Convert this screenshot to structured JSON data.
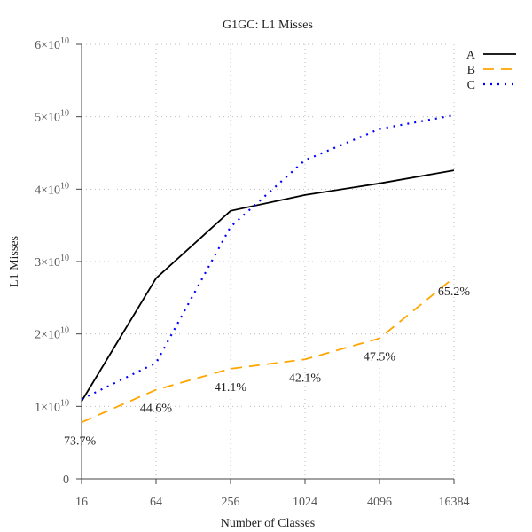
{
  "chart_data": {
    "type": "line",
    "title": "G1GC: L1 Misses",
    "xlabel": "Number of Classes",
    "ylabel": "L1 Misses",
    "x_scale": "log2",
    "x": [
      16,
      64,
      256,
      1024,
      4096,
      16384
    ],
    "x_ticks": [
      "16",
      "64",
      "256",
      "1024",
      "4096",
      "16384"
    ],
    "ylim": [
      0,
      60000000000
    ],
    "y_ticks": [
      {
        "value": 0,
        "mant": "0",
        "exp": ""
      },
      {
        "value": 10000000000,
        "mant": "1×10",
        "exp": "10"
      },
      {
        "value": 20000000000,
        "mant": "2×10",
        "exp": "10"
      },
      {
        "value": 30000000000,
        "mant": "3×10",
        "exp": "10"
      },
      {
        "value": 40000000000,
        "mant": "4×10",
        "exp": "10"
      },
      {
        "value": 50000000000,
        "mant": "5×10",
        "exp": "10"
      },
      {
        "value": 60000000000,
        "mant": "6×10",
        "exp": "10"
      }
    ],
    "grid": true,
    "legend_position": "top-right",
    "series": [
      {
        "name": "A",
        "color": "#000000",
        "style": "solid",
        "values": [
          10700000000,
          27700000000,
          37000000000,
          39200000000,
          40800000000,
          42600000000
        ]
      },
      {
        "name": "B",
        "color": "#ffa500",
        "style": "dashed",
        "values": [
          7800000000,
          12300000000,
          15200000000,
          16500000000,
          19400000000,
          27800000000
        ]
      },
      {
        "name": "C",
        "color": "#0000ff",
        "style": "dotted",
        "values": [
          11000000000,
          16000000000,
          34800000000,
          44000000000,
          48300000000,
          50200000000
        ]
      }
    ],
    "annotations": [
      {
        "x": 16,
        "label": "73.7%"
      },
      {
        "x": 64,
        "label": "44.6%"
      },
      {
        "x": 256,
        "label": "41.1%"
      },
      {
        "x": 1024,
        "label": "42.1%"
      },
      {
        "x": 4096,
        "label": "47.5%"
      },
      {
        "x": 16384,
        "label": "65.2%"
      }
    ]
  }
}
